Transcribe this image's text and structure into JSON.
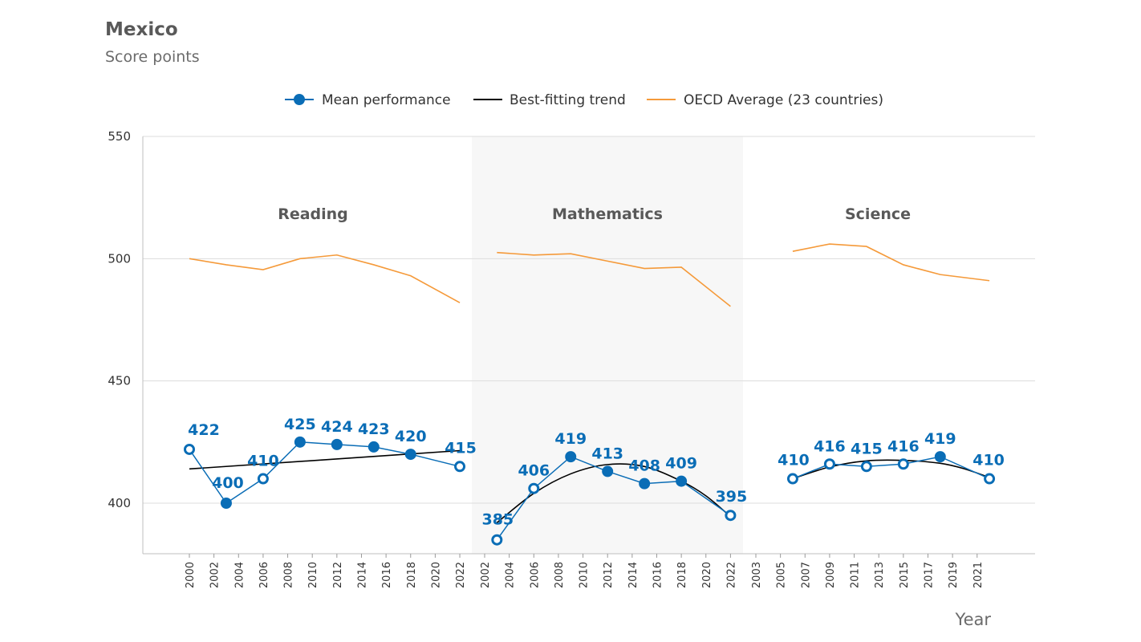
{
  "header": {
    "title": "Mexico",
    "subtitle": "Score points"
  },
  "legend": [
    {
      "label": "Mean performance",
      "color": "#0a6db6",
      "kind": "marker-line"
    },
    {
      "label": "Best-fitting trend",
      "color": "#000000",
      "kind": "line"
    },
    {
      "label": "OECD Average (23 countries)",
      "color": "#f59a3a",
      "kind": "line"
    }
  ],
  "chart_data": {
    "type": "line",
    "title": "Mexico",
    "subtitle": "Score points",
    "xlabel": "Year",
    "ylabel": "",
    "ylim": [
      380,
      550
    ],
    "yticks": [
      400,
      450,
      500,
      550
    ],
    "grid": true,
    "legend_position": "top-center",
    "colors": {
      "mean": "#0a6db6",
      "trend": "#000000",
      "oecd": "#f59a3a",
      "shaded_panel": "#f7f7f7"
    },
    "panels": [
      {
        "name": "Reading",
        "xticks": [
          "2000",
          "2002",
          "2004",
          "2006",
          "2008",
          "2010",
          "2012",
          "2014",
          "2016",
          "2018",
          "2020",
          "2022"
        ],
        "mean_performance": [
          {
            "year": 2000,
            "value": 422,
            "filled": false
          },
          {
            "year": 2003,
            "value": 400,
            "filled": true
          },
          {
            "year": 2006,
            "value": 410,
            "filled": false
          },
          {
            "year": 2009,
            "value": 425,
            "filled": true
          },
          {
            "year": 2012,
            "value": 424,
            "filled": true
          },
          {
            "year": 2015,
            "value": 423,
            "filled": true
          },
          {
            "year": 2018,
            "value": 420,
            "filled": true
          },
          {
            "year": 2022,
            "value": 415,
            "filled": false
          }
        ],
        "trend": [
          {
            "year": 2000,
            "value": 414
          },
          {
            "year": 2022,
            "value": 421.5
          }
        ],
        "oecd_average": [
          {
            "year": 2000,
            "value": 500
          },
          {
            "year": 2003,
            "value": 497.5
          },
          {
            "year": 2006,
            "value": 495.5
          },
          {
            "year": 2009,
            "value": 500
          },
          {
            "year": 2012,
            "value": 501.5
          },
          {
            "year": 2015,
            "value": 497.5
          },
          {
            "year": 2018,
            "value": 493
          },
          {
            "year": 2022,
            "value": 482
          }
        ]
      },
      {
        "name": "Mathematics",
        "xticks": [
          "2002",
          "2004",
          "2006",
          "2008",
          "2010",
          "2012",
          "2014",
          "2016",
          "2018",
          "2020",
          "2022"
        ],
        "mean_performance": [
          {
            "year": 2003,
            "value": 385,
            "filled": false
          },
          {
            "year": 2006,
            "value": 406,
            "filled": false
          },
          {
            "year": 2009,
            "value": 419,
            "filled": true
          },
          {
            "year": 2012,
            "value": 413,
            "filled": true
          },
          {
            "year": 2015,
            "value": 408,
            "filled": true
          },
          {
            "year": 2018,
            "value": 409,
            "filled": true
          },
          {
            "year": 2022,
            "value": 395,
            "filled": false
          }
        ],
        "trend": [
          {
            "year": 2003,
            "value": 392
          },
          {
            "year": 2006,
            "value": 404
          },
          {
            "year": 2009,
            "value": 412
          },
          {
            "year": 2012,
            "value": 415.8
          },
          {
            "year": 2015,
            "value": 415
          },
          {
            "year": 2018,
            "value": 409
          },
          {
            "year": 2020,
            "value": 403
          },
          {
            "year": 2022,
            "value": 394.5
          }
        ],
        "oecd_average": [
          {
            "year": 2003,
            "value": 502.5
          },
          {
            "year": 2006,
            "value": 501.5
          },
          {
            "year": 2009,
            "value": 502
          },
          {
            "year": 2012,
            "value": 499
          },
          {
            "year": 2015,
            "value": 496
          },
          {
            "year": 2018,
            "value": 496.5
          },
          {
            "year": 2022,
            "value": 480.5
          }
        ]
      },
      {
        "name": "Science",
        "xticks": [
          "2003",
          "2005",
          "2007",
          "2009",
          "2011",
          "2013",
          "2015",
          "2017",
          "2019",
          "2021"
        ],
        "mean_performance": [
          {
            "year": 2006,
            "value": 410,
            "filled": false
          },
          {
            "year": 2009,
            "value": 416,
            "filled": false
          },
          {
            "year": 2012,
            "value": 415,
            "filled": false
          },
          {
            "year": 2015,
            "value": 416,
            "filled": false
          },
          {
            "year": 2018,
            "value": 419,
            "filled": true
          },
          {
            "year": 2022,
            "value": 410,
            "filled": false
          }
        ],
        "trend": [
          {
            "year": 2006,
            "value": 410
          },
          {
            "year": 2009,
            "value": 414.8
          },
          {
            "year": 2012,
            "value": 417.3
          },
          {
            "year": 2015,
            "value": 417.5
          },
          {
            "year": 2018,
            "value": 416.3
          },
          {
            "year": 2020,
            "value": 414
          },
          {
            "year": 2022,
            "value": 410.5
          }
        ],
        "oecd_average": [
          {
            "year": 2006,
            "value": 503
          },
          {
            "year": 2009,
            "value": 506
          },
          {
            "year": 2012,
            "value": 505
          },
          {
            "year": 2015,
            "value": 497.5
          },
          {
            "year": 2018,
            "value": 493.5
          },
          {
            "year": 2022,
            "value": 491
          }
        ]
      }
    ]
  }
}
